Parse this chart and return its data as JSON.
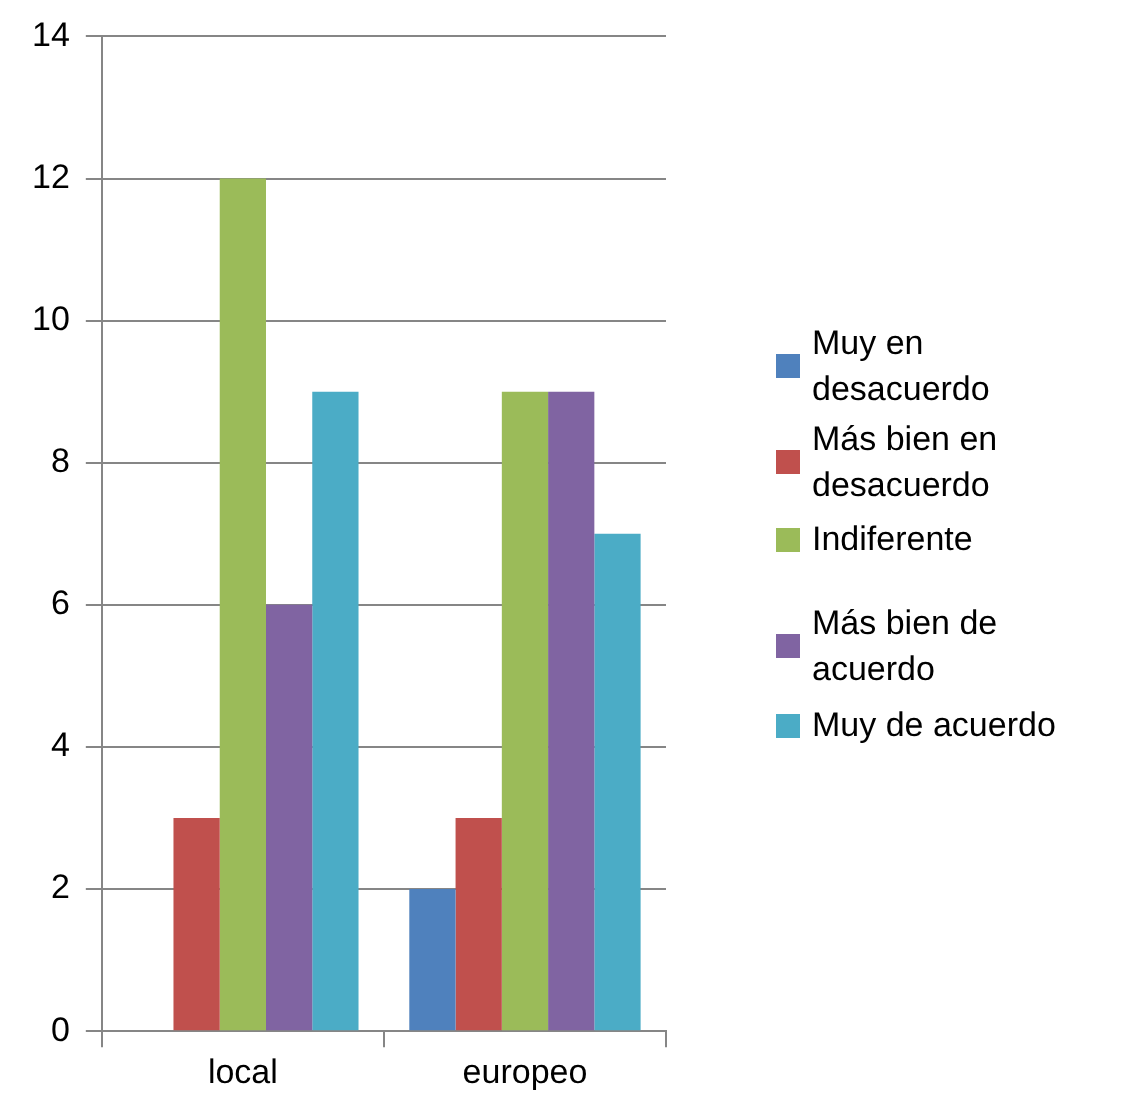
{
  "chart_data": {
    "type": "bar",
    "categories": [
      "local",
      "europeo"
    ],
    "series": [
      {
        "name": "Muy en desacuerdo",
        "color": "#4f81bd",
        "values": [
          0,
          2
        ]
      },
      {
        "name": "Más bien en desacuerdo",
        "color": "#c0504d",
        "values": [
          3,
          3
        ]
      },
      {
        "name": "Indiferente",
        "color": "#9bbb59",
        "values": [
          12,
          9
        ]
      },
      {
        "name": "Más bien de acuerdo",
        "color": "#8064a2",
        "values": [
          6,
          9
        ]
      },
      {
        "name": "Muy de acuerdo",
        "color": "#4bacc6",
        "values": [
          9,
          7
        ]
      }
    ],
    "ylim": [
      0,
      14
    ],
    "yticks": [
      0,
      2,
      4,
      6,
      8,
      10,
      12,
      14
    ],
    "grid": "y",
    "legend": "right"
  }
}
